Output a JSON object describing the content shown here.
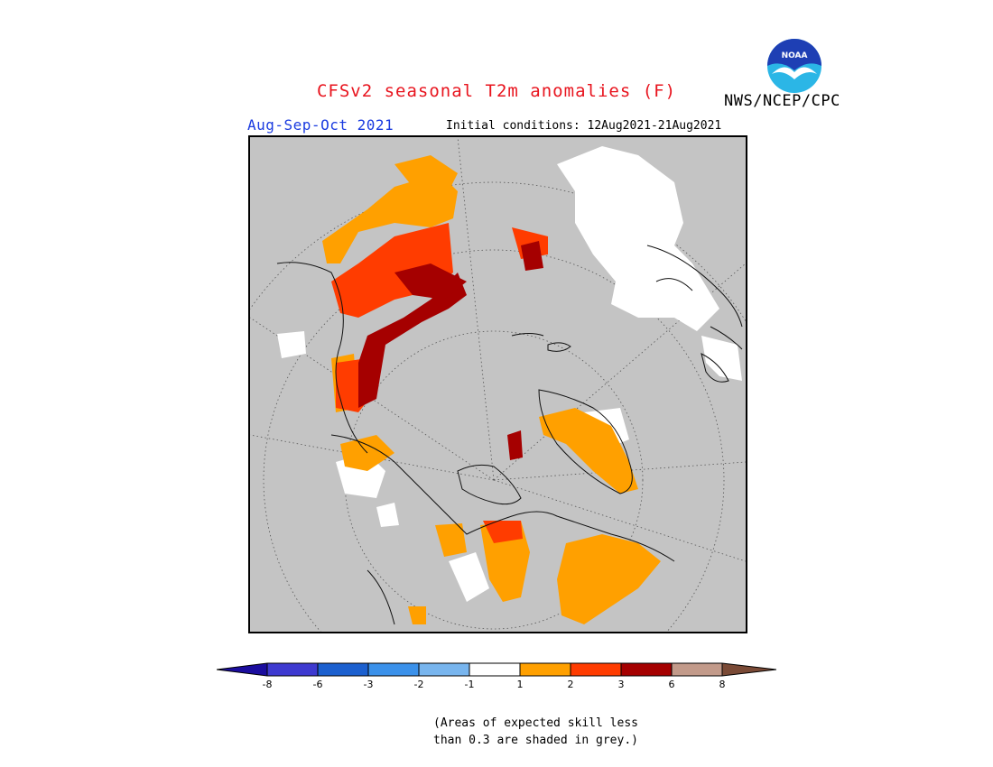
{
  "header": {
    "title": "CFSv2 seasonal T2m anomalies (F)",
    "agency": "NWS/NCEP/CPC",
    "season": "Aug-Sep-Oct 2021",
    "initial_conditions": "Initial conditions: 12Aug2021-21Aug2021"
  },
  "logo": {
    "text": "NOAA",
    "colors": {
      "sky": "#1e3fb4",
      "bird": "#ffffff",
      "sea": "#2bb6e6"
    }
  },
  "map": {
    "projection": "north polar stereographic",
    "background_color": "#c4c4c4",
    "graticule": "dotted"
  },
  "colorbar": {
    "ticks": [
      "-8",
      "-6",
      "-3",
      "-2",
      "-1",
      "1",
      "2",
      "3",
      "6",
      "8"
    ],
    "colors": [
      "#1b0d9e",
      "#3e3ad0",
      "#1c60cf",
      "#3b91ea",
      "#78b5ee",
      "#ffffff",
      "#ffa000",
      "#ff3c00",
      "#a50000",
      "#c29a8a",
      "#7a4a36"
    ]
  },
  "note": {
    "line1": "(Areas of expected skill less",
    "line2": "than 0.3 are shaded in grey.)"
  }
}
